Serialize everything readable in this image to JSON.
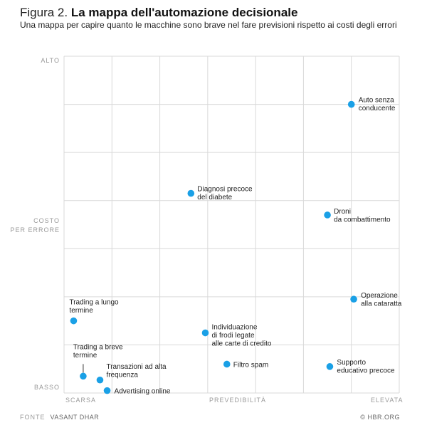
{
  "header": {
    "figure_label": "Figura 2.",
    "title": "La mappa dell'automazione decisionale",
    "subtitle": "Una mappa per capire quanto le macchine sono brave nel fare previsioni rispetto ai costi degli errori"
  },
  "footer": {
    "source_label": "FONTE",
    "source": "VASANT DHAR",
    "credit": "© HBR.ORG"
  },
  "colors": {
    "point": "#1aa0e6",
    "grid": "#d9d9d9"
  },
  "chart_data": {
    "type": "scatter",
    "xlabel": "PREVEDIBILITÀ",
    "ylabel": "COSTO PER ERRORE",
    "ylabel_lines": [
      "COSTO",
      "PER ERRORE"
    ],
    "x_ticks": [
      "SCARSA",
      "ELEVATA"
    ],
    "y_ticks": [
      "ALTO",
      "BASSO"
    ],
    "xlim": [
      0,
      7
    ],
    "ylim": [
      0,
      7
    ],
    "grid": true,
    "points": [
      {
        "label": [
          "Auto senza",
          "conducente"
        ],
        "x": 6.0,
        "y": 6.0
      },
      {
        "label": [
          "Diagnosi precoce",
          "del diabete"
        ],
        "x": 2.65,
        "y": 4.15
      },
      {
        "label": [
          "Droni",
          "da combattimento"
        ],
        "x": 5.5,
        "y": 3.7
      },
      {
        "label": [
          "Operazione",
          "alla cataratta"
        ],
        "x": 6.05,
        "y": 1.95
      },
      {
        "label": [
          "Trading a lungo",
          "termine"
        ],
        "x": 0.2,
        "y": 1.5
      },
      {
        "label": [
          "Individuazione",
          "di frodi legate",
          "alle carte di credito"
        ],
        "x": 2.95,
        "y": 1.25
      },
      {
        "label": [
          "Filtro spam"
        ],
        "x": 3.4,
        "y": 0.6
      },
      {
        "label": [
          "Supporto",
          "educativo precoce"
        ],
        "x": 5.55,
        "y": 0.55
      },
      {
        "label": [
          "Trading a breve",
          "termine"
        ],
        "x": 0.4,
        "y": 0.35
      },
      {
        "label": [
          "Transazioni ad alta",
          "frequenza"
        ],
        "x": 0.75,
        "y": 0.27
      },
      {
        "label": [
          "Advertising online"
        ],
        "x": 0.9,
        "y": 0.05
      }
    ]
  }
}
